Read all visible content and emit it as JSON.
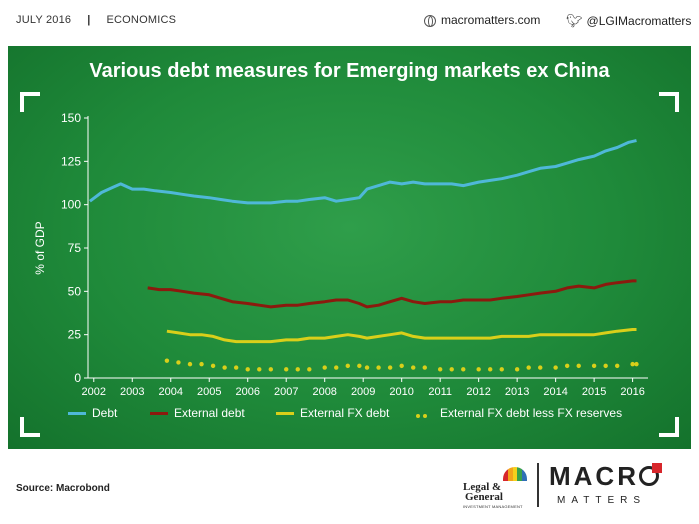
{
  "header": {
    "date": "JULY 2016",
    "section": "ECONOMICS",
    "website": "macromatters.com",
    "twitter": "@LGIMacromatters"
  },
  "footer": {
    "source": "Source: Macrobond",
    "lg_line1": "Legal &",
    "lg_line2": "General",
    "lg_line3": "INVESTMENT MANAGEMENT",
    "brand": "MACRO",
    "brand_sub": "MATTERS"
  },
  "colors": {
    "panel_bg": "#1f8a3a",
    "debt": "#4fb8d8",
    "external_debt": "#8b1a0e",
    "external_fx_debt": "#d9cf1a",
    "external_fx_less_reserves": "#d9cf1a"
  },
  "chart_data": {
    "type": "line",
    "title": "Various debt measures for Emerging markets ex China",
    "ylabel": "% of GDP",
    "xlabel": "",
    "ylim": [
      0,
      150
    ],
    "xlim": [
      2001.85,
      2016.4
    ],
    "yticks": [
      0,
      25,
      50,
      75,
      100,
      125,
      150
    ],
    "xticks": [
      2002,
      2003,
      2004,
      2005,
      2006,
      2007,
      2008,
      2009,
      2010,
      2011,
      2012,
      2013,
      2014,
      2015,
      2016
    ],
    "grid": false,
    "legend_position": "bottom",
    "series": [
      {
        "name": "Debt",
        "style": "line",
        "points": [
          [
            2001.9,
            102
          ],
          [
            2002.2,
            107
          ],
          [
            2002.5,
            110
          ],
          [
            2002.7,
            112
          ],
          [
            2003.0,
            109
          ],
          [
            2003.3,
            109
          ],
          [
            2003.6,
            108
          ],
          [
            2004.0,
            107
          ],
          [
            2004.3,
            106
          ],
          [
            2004.6,
            105
          ],
          [
            2005.0,
            104
          ],
          [
            2005.3,
            103
          ],
          [
            2005.6,
            102
          ],
          [
            2006.0,
            101
          ],
          [
            2006.3,
            101
          ],
          [
            2006.6,
            101
          ],
          [
            2007.0,
            102
          ],
          [
            2007.3,
            102
          ],
          [
            2007.6,
            103
          ],
          [
            2008.0,
            104
          ],
          [
            2008.3,
            102
          ],
          [
            2008.6,
            103
          ],
          [
            2008.9,
            104
          ],
          [
            2009.1,
            109
          ],
          [
            2009.4,
            111
          ],
          [
            2009.7,
            113
          ],
          [
            2010.0,
            112
          ],
          [
            2010.3,
            113
          ],
          [
            2010.6,
            112
          ],
          [
            2011.0,
            112
          ],
          [
            2011.3,
            112
          ],
          [
            2011.6,
            111
          ],
          [
            2012.0,
            113
          ],
          [
            2012.3,
            114
          ],
          [
            2012.6,
            115
          ],
          [
            2013.0,
            117
          ],
          [
            2013.3,
            119
          ],
          [
            2013.6,
            121
          ],
          [
            2014.0,
            122
          ],
          [
            2014.3,
            124
          ],
          [
            2014.6,
            126
          ],
          [
            2015.0,
            128
          ],
          [
            2015.3,
            131
          ],
          [
            2015.6,
            133
          ],
          [
            2015.9,
            136
          ],
          [
            2016.1,
            137
          ]
        ]
      },
      {
        "name": "External debt",
        "style": "line",
        "points": [
          [
            2003.4,
            52
          ],
          [
            2003.7,
            51
          ],
          [
            2004.0,
            51
          ],
          [
            2004.3,
            50
          ],
          [
            2004.6,
            49
          ],
          [
            2005.0,
            48
          ],
          [
            2005.3,
            46
          ],
          [
            2005.6,
            44
          ],
          [
            2006.0,
            43
          ],
          [
            2006.3,
            42
          ],
          [
            2006.6,
            41
          ],
          [
            2007.0,
            42
          ],
          [
            2007.3,
            42
          ],
          [
            2007.6,
            43
          ],
          [
            2008.0,
            44
          ],
          [
            2008.3,
            45
          ],
          [
            2008.6,
            45
          ],
          [
            2008.9,
            43
          ],
          [
            2009.1,
            41
          ],
          [
            2009.4,
            42
          ],
          [
            2009.7,
            44
          ],
          [
            2010.0,
            46
          ],
          [
            2010.3,
            44
          ],
          [
            2010.6,
            43
          ],
          [
            2011.0,
            44
          ],
          [
            2011.3,
            44
          ],
          [
            2011.6,
            45
          ],
          [
            2012.0,
            45
          ],
          [
            2012.3,
            45
          ],
          [
            2012.6,
            46
          ],
          [
            2013.0,
            47
          ],
          [
            2013.3,
            48
          ],
          [
            2013.6,
            49
          ],
          [
            2014.0,
            50
          ],
          [
            2014.3,
            52
          ],
          [
            2014.6,
            53
          ],
          [
            2015.0,
            52
          ],
          [
            2015.3,
            54
          ],
          [
            2015.6,
            55
          ],
          [
            2016.0,
            56
          ],
          [
            2016.1,
            56
          ]
        ]
      },
      {
        "name": "External FX debt",
        "style": "line",
        "points": [
          [
            2003.9,
            27
          ],
          [
            2004.2,
            26
          ],
          [
            2004.5,
            25
          ],
          [
            2004.8,
            25
          ],
          [
            2005.1,
            24
          ],
          [
            2005.4,
            22
          ],
          [
            2005.7,
            21
          ],
          [
            2006.0,
            21
          ],
          [
            2006.3,
            21
          ],
          [
            2006.6,
            21
          ],
          [
            2007.0,
            22
          ],
          [
            2007.3,
            22
          ],
          [
            2007.6,
            23
          ],
          [
            2008.0,
            23
          ],
          [
            2008.3,
            24
          ],
          [
            2008.6,
            25
          ],
          [
            2008.9,
            24
          ],
          [
            2009.1,
            23
          ],
          [
            2009.4,
            24
          ],
          [
            2009.7,
            25
          ],
          [
            2010.0,
            26
          ],
          [
            2010.3,
            24
          ],
          [
            2010.6,
            23
          ],
          [
            2011.0,
            23
          ],
          [
            2011.3,
            23
          ],
          [
            2011.6,
            23
          ],
          [
            2012.0,
            23
          ],
          [
            2012.3,
            23
          ],
          [
            2012.6,
            24
          ],
          [
            2013.0,
            24
          ],
          [
            2013.3,
            24
          ],
          [
            2013.6,
            25
          ],
          [
            2014.0,
            25
          ],
          [
            2014.3,
            25
          ],
          [
            2014.6,
            25
          ],
          [
            2015.0,
            25
          ],
          [
            2015.3,
            26
          ],
          [
            2015.6,
            27
          ],
          [
            2016.0,
            28
          ],
          [
            2016.1,
            28
          ]
        ]
      },
      {
        "name": "External FX debt less FX reserves",
        "style": "dots",
        "points": [
          [
            2003.9,
            10
          ],
          [
            2004.2,
            9
          ],
          [
            2004.5,
            8
          ],
          [
            2004.8,
            8
          ],
          [
            2005.1,
            7
          ],
          [
            2005.4,
            6
          ],
          [
            2005.7,
            6
          ],
          [
            2006.0,
            5
          ],
          [
            2006.3,
            5
          ],
          [
            2006.6,
            5
          ],
          [
            2007.0,
            5
          ],
          [
            2007.3,
            5
          ],
          [
            2007.6,
            5
          ],
          [
            2008.0,
            6
          ],
          [
            2008.3,
            6
          ],
          [
            2008.6,
            7
          ],
          [
            2008.9,
            7
          ],
          [
            2009.1,
            6
          ],
          [
            2009.4,
            6
          ],
          [
            2009.7,
            6
          ],
          [
            2010.0,
            7
          ],
          [
            2010.3,
            6
          ],
          [
            2010.6,
            6
          ],
          [
            2011.0,
            5
          ],
          [
            2011.3,
            5
          ],
          [
            2011.6,
            5
          ],
          [
            2012.0,
            5
          ],
          [
            2012.3,
            5
          ],
          [
            2012.6,
            5
          ],
          [
            2013.0,
            5
          ],
          [
            2013.3,
            6
          ],
          [
            2013.6,
            6
          ],
          [
            2014.0,
            6
          ],
          [
            2014.3,
            7
          ],
          [
            2014.6,
            7
          ],
          [
            2015.0,
            7
          ],
          [
            2015.3,
            7
          ],
          [
            2015.6,
            7
          ],
          [
            2016.0,
            8
          ],
          [
            2016.1,
            8
          ]
        ]
      }
    ]
  }
}
